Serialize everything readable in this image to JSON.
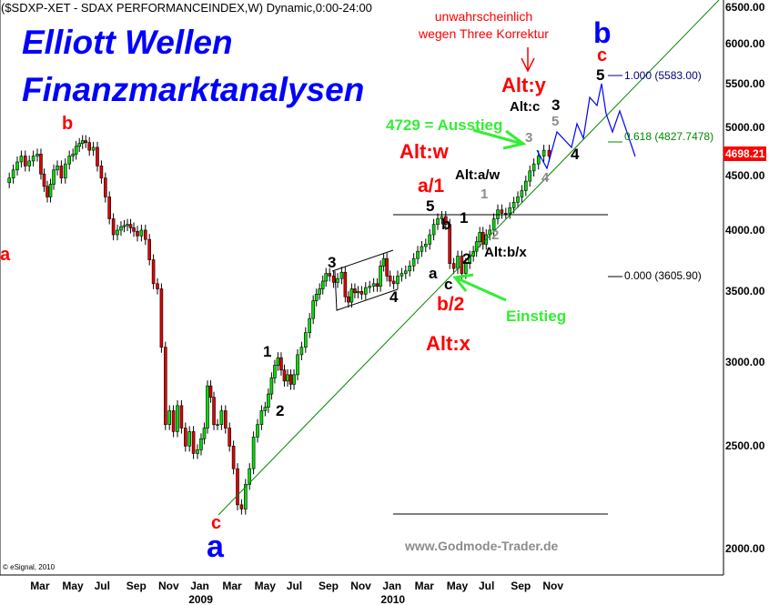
{
  "header": {
    "title": "($SDXP-XET - SDAX PERFORMANCEINDEX,W) Dynamic,0:00-24:00"
  },
  "brand": {
    "line1": "Elliott Wellen",
    "line2": "Finanzmarktanalysen"
  },
  "watermark": "www.Godmode-Trader.de",
  "copyright": "© eSignal, 2010",
  "last_price": "4698.21",
  "colors": {
    "up": "#00e000",
    "down": "#e00000",
    "trendline": "#008800",
    "projection": "#0000ff",
    "badge": "#ff0000"
  },
  "chart_data": {
    "type": "candlestick",
    "title": "($SDXP-XET - SDAX PERFORMANCEINDEX,W) Dynamic,0:00-24:00",
    "y_scale": "log",
    "ylim": [
      2000,
      6500
    ],
    "y_ticks": [
      "6500.00",
      "6000.00",
      "5500.00",
      "5000.00",
      "4500.00",
      "4000.00",
      "3500.00",
      "3000.00",
      "2500.00",
      "2000.00"
    ],
    "x_ticks": [
      {
        "label": "Mar",
        "month": "2008-03"
      },
      {
        "label": "May",
        "month": "2008-05"
      },
      {
        "label": "Jul",
        "month": "2008-07"
      },
      {
        "label": "Sep",
        "month": "2008-09"
      },
      {
        "label": "Nov",
        "month": "2008-11"
      },
      {
        "label": "Jan",
        "month": "2009-01",
        "year": "2009"
      },
      {
        "label": "Mar",
        "month": "2009-03"
      },
      {
        "label": "May",
        "month": "2009-05"
      },
      {
        "label": "Jul",
        "month": "2009-07"
      },
      {
        "label": "Sep",
        "month": "2009-09"
      },
      {
        "label": "Nov",
        "month": "2009-11"
      },
      {
        "label": "Jan",
        "month": "2010-01",
        "year": "2010"
      },
      {
        "label": "Mar",
        "month": "2010-03"
      },
      {
        "label": "May",
        "month": "2010-05"
      },
      {
        "label": "Jul",
        "month": "2010-07"
      },
      {
        "label": "Sep",
        "month": "2010-09"
      },
      {
        "label": "Nov",
        "month": "2010-11"
      }
    ],
    "weekly_closes_by_month": [
      {
        "month": "2008-01",
        "c": [
          4480,
          4560,
          4640,
          4700
        ]
      },
      {
        "month": "2008-02",
        "c": [
          4600,
          4650,
          4700,
          4720
        ]
      },
      {
        "month": "2008-03",
        "c": [
          4520,
          4400,
          4300,
          4420,
          4560
        ]
      },
      {
        "month": "2008-04",
        "c": [
          4600,
          4480,
          4620,
          4700
        ]
      },
      {
        "month": "2008-05",
        "c": [
          4720,
          4800,
          4830,
          4860,
          4840
        ]
      },
      {
        "month": "2008-06",
        "c": [
          4760,
          4790,
          4600,
          4480
        ]
      },
      {
        "month": "2008-07",
        "c": [
          4300,
          4100,
          3960,
          4000
        ]
      },
      {
        "month": "2008-08",
        "c": [
          4030,
          4040,
          4050,
          4020,
          3990
        ]
      },
      {
        "month": "2008-09",
        "c": [
          3950,
          4000,
          3920,
          3750
        ]
      },
      {
        "month": "2008-10",
        "c": [
          3560,
          3520,
          3100,
          2620
        ]
      },
      {
        "month": "2008-11",
        "c": [
          2700,
          2580,
          2730,
          2600
        ]
      },
      {
        "month": "2008-12",
        "c": [
          2500,
          2580,
          2460,
          2480
        ]
      },
      {
        "month": "2009-01",
        "c": [
          2540,
          2600,
          2850,
          2780,
          2620
        ]
      },
      {
        "month": "2009-02",
        "c": [
          2620,
          2700,
          2600,
          2500
        ]
      },
      {
        "month": "2009-03",
        "c": [
          2380,
          2200,
          2180,
          2300
        ]
      },
      {
        "month": "2009-04",
        "c": [
          2380,
          2550,
          2620,
          2700
        ]
      },
      {
        "month": "2009-05",
        "c": [
          2720,
          2800,
          2900,
          2980,
          3030
        ]
      },
      {
        "month": "2009-06",
        "c": [
          2950,
          2880,
          2920,
          2860,
          2920
        ]
      },
      {
        "month": "2009-07",
        "c": [
          3050,
          3100,
          3200,
          3300
        ]
      },
      {
        "month": "2009-08",
        "c": [
          3430,
          3480,
          3520,
          3580,
          3640
        ]
      },
      {
        "month": "2009-09",
        "c": [
          3620,
          3570,
          3600,
          3650
        ]
      },
      {
        "month": "2009-10",
        "c": [
          3460,
          3420,
          3520,
          3490,
          3500
        ]
      },
      {
        "month": "2009-11",
        "c": [
          3480,
          3530,
          3540,
          3560
        ]
      },
      {
        "month": "2009-12",
        "c": [
          3540,
          3700,
          3760,
          3620,
          3580
        ]
      },
      {
        "month": "2010-01",
        "c": [
          3560,
          3620,
          3640,
          3660
        ]
      },
      {
        "month": "2010-02",
        "c": [
          3700,
          3760,
          3820,
          3860
        ]
      },
      {
        "month": "2010-03",
        "c": [
          3880,
          3960,
          4050,
          4100
        ]
      },
      {
        "month": "2010-04",
        "c": [
          4120,
          4050,
          3720,
          3680
        ]
      },
      {
        "month": "2010-05",
        "c": [
          3780,
          3640,
          3720,
          3780
        ]
      },
      {
        "month": "2010-06",
        "c": [
          3820,
          3900,
          3980,
          3880,
          3960
        ]
      },
      {
        "month": "2010-07",
        "c": [
          4000,
          4100,
          4180,
          4150
        ]
      },
      {
        "month": "2010-08",
        "c": [
          4150,
          4200,
          4250,
          4300
        ]
      },
      {
        "month": "2010-09",
        "c": [
          4360,
          4450,
          4550,
          4620
        ]
      },
      {
        "month": "2010-10",
        "c": [
          4700,
          4760,
          4698
        ]
      }
    ],
    "fibonacci": [
      {
        "label": "1.000 (5583.00)",
        "ratio": 1.0,
        "value": 5583.0
      },
      {
        "label": "0.618 (4827.7478)",
        "ratio": 0.618,
        "value": 4827.7478
      },
      {
        "label": "0.000 (3605.90)",
        "ratio": 0.0,
        "value": 3605.9
      }
    ],
    "annotations": {
      "wave_a_2008": "a",
      "wave_b_2008": "b",
      "wave_c_low": "c",
      "wave_a_major": "a",
      "w1": "1",
      "w2": "2",
      "w3": "3",
      "w4": "4",
      "w5": "5",
      "a1": "a/1",
      "sub_b": "b",
      "sub_a": "a",
      "sub_c": "c",
      "b2": "b/2",
      "sub1": "1",
      "sub2": "2",
      "alt_w": "Alt:w",
      "alt_x": "Alt:x",
      "alt_aw": "Alt:a/w",
      "alt_bx": "Alt:b/x",
      "alt_c": "Alt:c",
      "alt_y": "Alt:y",
      "g1": "1",
      "g2": "2",
      "g3": "3",
      "g4": "4",
      "g5": "5",
      "proj3": "3",
      "proj4": "4",
      "proj5": "5",
      "proj_c": "c",
      "proj_b": "b",
      "exit": "4729 = Ausstieg",
      "entry": "Einstieg",
      "note_line1": "unwahrscheinlich",
      "note_line2": "wegen Three Korrektur"
    }
  }
}
